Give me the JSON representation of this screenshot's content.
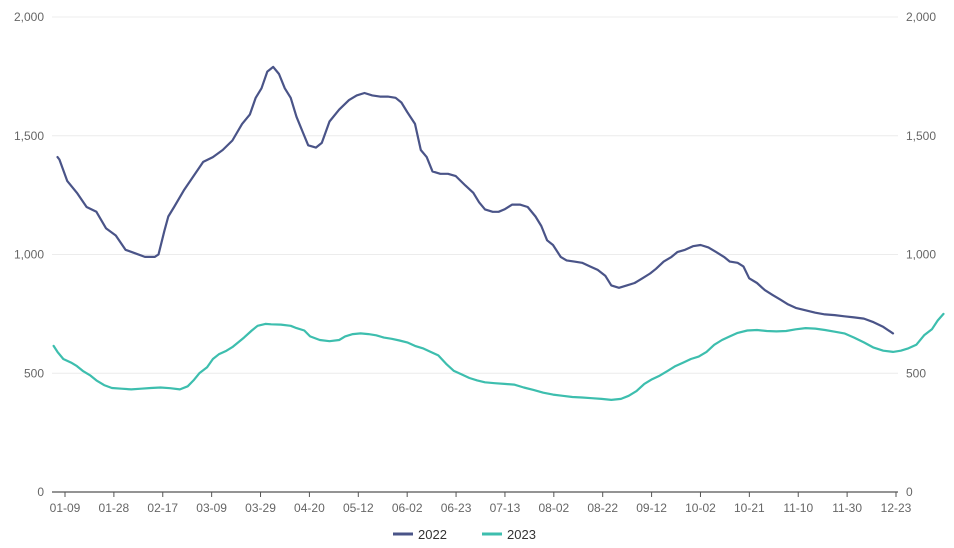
{
  "chart_data": {
    "type": "line",
    "title": "",
    "xlabel": "",
    "ylabel": "",
    "x_ticks": [
      "01-09",
      "01-28",
      "02-17",
      "03-09",
      "03-29",
      "04-20",
      "05-12",
      "06-02",
      "06-23",
      "07-13",
      "08-02",
      "08-22",
      "09-12",
      "10-02",
      "10-21",
      "11-10",
      "11-30",
      "12-23"
    ],
    "y_ticks": [
      "0",
      "500",
      "1,000",
      "1,500",
      "2,000"
    ],
    "y_ticks_right": [
      "0",
      "500",
      "1,000",
      "1,500",
      "2,000"
    ],
    "ylim": [
      0,
      2000
    ],
    "grid": "horizontal",
    "legend_position": "bottom-center",
    "series": [
      {
        "name": "2022",
        "color": "#4a5488",
        "points": [
          [
            0.0,
            1410
          ],
          [
            0.1,
            1400
          ],
          [
            0.5,
            1310
          ],
          [
            1.0,
            1260
          ],
          [
            1.5,
            1200
          ],
          [
            2.0,
            1180
          ],
          [
            2.5,
            1110
          ],
          [
            3.0,
            1080
          ],
          [
            3.5,
            1020
          ],
          [
            4.0,
            1005
          ],
          [
            4.5,
            990
          ],
          [
            5.0,
            990
          ],
          [
            5.2,
            1000
          ],
          [
            5.5,
            1100
          ],
          [
            5.7,
            1160
          ],
          [
            6.0,
            1200
          ],
          [
            6.5,
            1270
          ],
          [
            7.0,
            1330
          ],
          [
            7.5,
            1390
          ],
          [
            8.0,
            1410
          ],
          [
            8.5,
            1440
          ],
          [
            9.0,
            1480
          ],
          [
            9.5,
            1550
          ],
          [
            9.9,
            1590
          ],
          [
            10.2,
            1660
          ],
          [
            10.5,
            1700
          ],
          [
            10.8,
            1770
          ],
          [
            11.1,
            1790
          ],
          [
            11.4,
            1760
          ],
          [
            11.7,
            1700
          ],
          [
            12.0,
            1660
          ],
          [
            12.3,
            1580
          ],
          [
            12.6,
            1520
          ],
          [
            12.9,
            1460
          ],
          [
            13.3,
            1450
          ],
          [
            13.6,
            1470
          ],
          [
            14.0,
            1560
          ],
          [
            14.5,
            1610
          ],
          [
            15.0,
            1650
          ],
          [
            15.4,
            1670
          ],
          [
            15.8,
            1680
          ],
          [
            16.2,
            1670
          ],
          [
            16.6,
            1665
          ],
          [
            17.0,
            1665
          ],
          [
            17.4,
            1660
          ],
          [
            17.7,
            1640
          ],
          [
            18.0,
            1600
          ],
          [
            18.4,
            1550
          ],
          [
            18.7,
            1440
          ],
          [
            19.0,
            1410
          ],
          [
            19.3,
            1350
          ],
          [
            19.7,
            1340
          ],
          [
            20.1,
            1340
          ],
          [
            20.5,
            1330
          ],
          [
            21.0,
            1290
          ],
          [
            21.4,
            1260
          ],
          [
            21.7,
            1220
          ],
          [
            22.0,
            1190
          ],
          [
            22.4,
            1180
          ],
          [
            22.7,
            1180
          ],
          [
            23.0,
            1190
          ],
          [
            23.4,
            1210
          ],
          [
            23.8,
            1210
          ],
          [
            24.2,
            1200
          ],
          [
            24.6,
            1160
          ],
          [
            24.9,
            1120
          ],
          [
            25.2,
            1060
          ],
          [
            25.5,
            1040
          ],
          [
            25.9,
            990
          ],
          [
            26.2,
            975
          ],
          [
            26.6,
            970
          ],
          [
            27.0,
            965
          ],
          [
            27.4,
            950
          ],
          [
            27.8,
            935
          ],
          [
            28.2,
            910
          ],
          [
            28.5,
            870
          ],
          [
            28.9,
            860
          ],
          [
            29.3,
            870
          ],
          [
            29.7,
            880
          ],
          [
            30.1,
            900
          ],
          [
            30.5,
            920
          ],
          [
            30.8,
            940
          ],
          [
            31.2,
            970
          ],
          [
            31.6,
            990
          ],
          [
            31.9,
            1010
          ],
          [
            32.3,
            1020
          ],
          [
            32.7,
            1035
          ],
          [
            33.1,
            1040
          ],
          [
            33.5,
            1030
          ],
          [
            33.9,
            1010
          ],
          [
            34.3,
            990
          ],
          [
            34.6,
            970
          ],
          [
            35.0,
            965
          ],
          [
            35.3,
            950
          ],
          [
            35.6,
            900
          ],
          [
            36.0,
            880
          ],
          [
            36.4,
            850
          ],
          [
            36.8,
            830
          ],
          [
            37.2,
            810
          ],
          [
            37.6,
            790
          ],
          [
            38.0,
            775
          ],
          [
            38.5,
            765
          ],
          [
            39.0,
            755
          ],
          [
            39.5,
            748
          ],
          [
            40.0,
            745
          ],
          [
            40.5,
            740
          ],
          [
            41.0,
            735
          ],
          [
            41.5,
            730
          ],
          [
            42.0,
            715
          ],
          [
            42.5,
            695
          ],
          [
            43.0,
            668
          ]
        ]
      },
      {
        "name": "2023",
        "color": "#3dbeae",
        "points": [
          [
            -0.2,
            615
          ],
          [
            0.0,
            590
          ],
          [
            0.3,
            560
          ],
          [
            0.7,
            545
          ],
          [
            1.0,
            530
          ],
          [
            1.3,
            510
          ],
          [
            1.7,
            490
          ],
          [
            2.0,
            470
          ],
          [
            2.4,
            450
          ],
          [
            2.8,
            438
          ],
          [
            3.3,
            435
          ],
          [
            3.8,
            432
          ],
          [
            4.3,
            435
          ],
          [
            4.8,
            438
          ],
          [
            5.3,
            440
          ],
          [
            5.8,
            437
          ],
          [
            6.3,
            432
          ],
          [
            6.7,
            445
          ],
          [
            7.0,
            470
          ],
          [
            7.3,
            500
          ],
          [
            7.7,
            525
          ],
          [
            8.0,
            560
          ],
          [
            8.3,
            580
          ],
          [
            8.7,
            595
          ],
          [
            9.0,
            610
          ],
          [
            9.3,
            630
          ],
          [
            9.6,
            650
          ],
          [
            10.0,
            680
          ],
          [
            10.3,
            700
          ],
          [
            10.7,
            708
          ],
          [
            11.0,
            706
          ],
          [
            11.5,
            705
          ],
          [
            12.0,
            700
          ],
          [
            12.3,
            690
          ],
          [
            12.7,
            680
          ],
          [
            13.0,
            655
          ],
          [
            13.5,
            640
          ],
          [
            14.0,
            635
          ],
          [
            14.5,
            640
          ],
          [
            14.8,
            655
          ],
          [
            15.2,
            665
          ],
          [
            15.6,
            668
          ],
          [
            16.0,
            665
          ],
          [
            16.4,
            660
          ],
          [
            16.8,
            650
          ],
          [
            17.2,
            645
          ],
          [
            17.6,
            638
          ],
          [
            18.0,
            630
          ],
          [
            18.4,
            615
          ],
          [
            18.8,
            605
          ],
          [
            19.2,
            590
          ],
          [
            19.6,
            575
          ],
          [
            20.0,
            540
          ],
          [
            20.4,
            510
          ],
          [
            20.8,
            495
          ],
          [
            21.2,
            480
          ],
          [
            21.6,
            470
          ],
          [
            22.0,
            462
          ],
          [
            22.5,
            458
          ],
          [
            23.0,
            455
          ],
          [
            23.5,
            452
          ],
          [
            24.0,
            440
          ],
          [
            24.5,
            430
          ],
          [
            25.0,
            418
          ],
          [
            25.5,
            410
          ],
          [
            26.0,
            405
          ],
          [
            26.5,
            400
          ],
          [
            27.0,
            398
          ],
          [
            27.5,
            395
          ],
          [
            28.0,
            392
          ],
          [
            28.5,
            388
          ],
          [
            29.0,
            392
          ],
          [
            29.4,
            405
          ],
          [
            29.8,
            425
          ],
          [
            30.2,
            455
          ],
          [
            30.6,
            475
          ],
          [
            31.0,
            490
          ],
          [
            31.4,
            510
          ],
          [
            31.8,
            530
          ],
          [
            32.2,
            545
          ],
          [
            32.6,
            560
          ],
          [
            33.0,
            570
          ],
          [
            33.4,
            590
          ],
          [
            33.8,
            620
          ],
          [
            34.2,
            640
          ],
          [
            34.6,
            655
          ],
          [
            35.0,
            670
          ],
          [
            35.5,
            680
          ],
          [
            36.0,
            682
          ],
          [
            36.5,
            678
          ],
          [
            37.0,
            676
          ],
          [
            37.5,
            678
          ],
          [
            38.0,
            685
          ],
          [
            38.5,
            690
          ],
          [
            39.0,
            688
          ],
          [
            39.5,
            682
          ],
          [
            40.0,
            675
          ],
          [
            40.5,
            668
          ],
          [
            41.0,
            650
          ],
          [
            41.5,
            630
          ],
          [
            42.0,
            608
          ],
          [
            42.5,
            595
          ],
          [
            43.0,
            590
          ],
          [
            43.4,
            595
          ],
          [
            43.8,
            605
          ],
          [
            44.2,
            620
          ],
          [
            44.6,
            660
          ],
          [
            45.0,
            685
          ],
          [
            45.3,
            722
          ],
          [
            45.6,
            750
          ]
        ]
      }
    ]
  }
}
